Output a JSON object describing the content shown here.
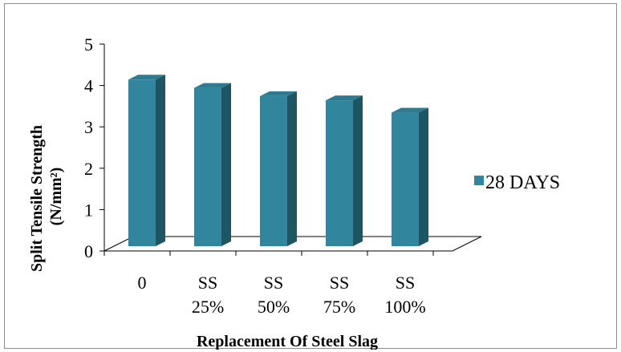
{
  "chart_data": {
    "type": "bar",
    "style": "3d-column",
    "categories": [
      [
        "0"
      ],
      [
        "SS",
        "25%"
      ],
      [
        "SS",
        "50%"
      ],
      [
        "SS",
        "75%"
      ],
      [
        "SS",
        "100%"
      ]
    ],
    "series": [
      {
        "name": "28 DAYS",
        "values": [
          4.2,
          4.0,
          3.8,
          3.7,
          3.4
        ]
      }
    ],
    "xlabel": "Replacement Of Steel Slag",
    "ylabel": [
      "Split Tensile Strength",
      "(N/mm²)"
    ],
    "ylim": [
      0,
      5
    ],
    "yticks": [
      "0",
      "1",
      "2",
      "3",
      "4",
      "5"
    ],
    "grid": false,
    "legend_position": "right",
    "colors": {
      "front": "#31859c",
      "side": "#1d5563",
      "top": "#2e7a8f",
      "axis": "#000000"
    }
  }
}
